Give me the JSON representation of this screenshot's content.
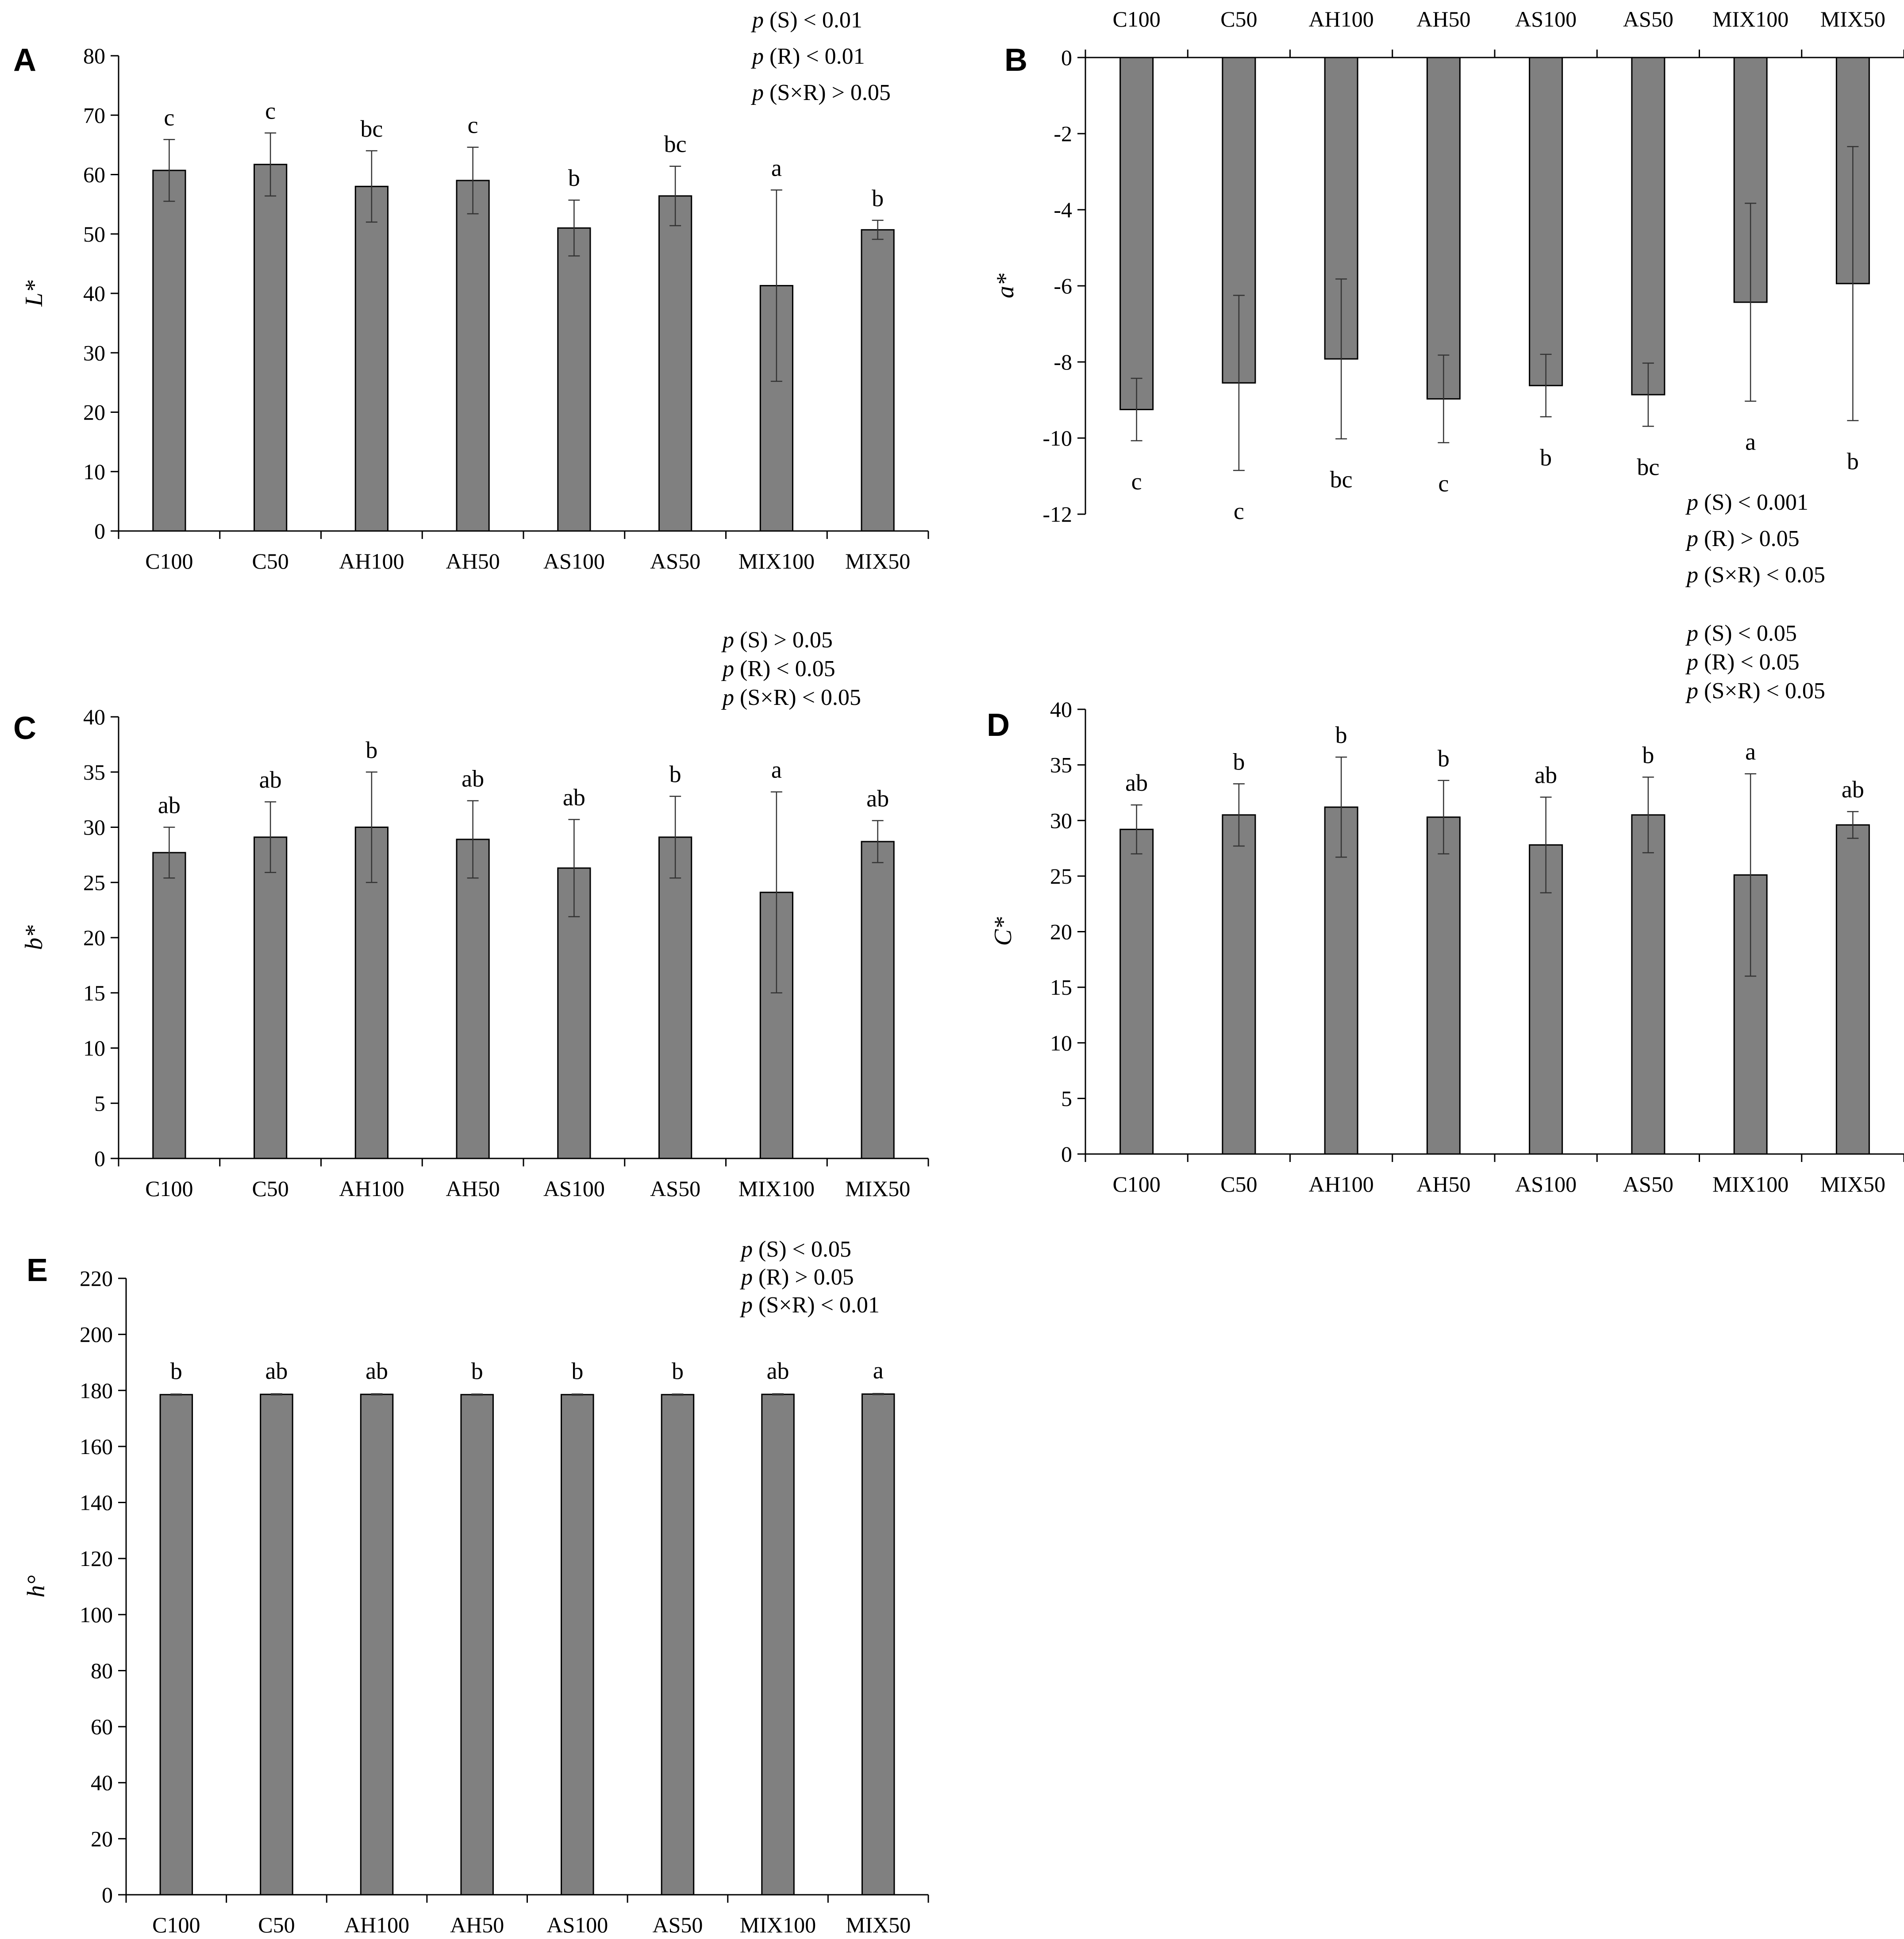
{
  "chart_data": [
    {
      "panel": "A",
      "type": "bar",
      "ylabel": "L*",
      "ylim": [
        0,
        80
      ],
      "yticks": [
        0,
        10,
        20,
        30,
        40,
        50,
        60,
        70,
        80
      ],
      "categories": [
        "C100",
        "C50",
        "AH100",
        "AH50",
        "AS100",
        "AS50",
        "MIX100",
        "MIX50"
      ],
      "values": [
        60.7,
        61.7,
        58.0,
        59.0,
        51.0,
        56.4,
        41.3,
        50.7
      ],
      "errors": [
        5.2,
        5.3,
        6.0,
        5.6,
        4.7,
        5.0,
        16.1,
        1.6
      ],
      "letters": [
        "c",
        "c",
        "bc",
        "c",
        "b",
        "bc",
        "a",
        "b"
      ],
      "stats": [
        {
          "p": "p",
          "text": " (S) < 0.01"
        },
        {
          "p": "p",
          "text": " (R) < 0.01"
        },
        {
          "p": "p",
          "text": " (S×R) > 0.05"
        }
      ]
    },
    {
      "panel": "B",
      "type": "bar",
      "ylabel": "a*",
      "ylim": [
        -12,
        0
      ],
      "yticks": [
        0,
        -2,
        -4,
        -6,
        -8,
        -10,
        -12
      ],
      "categories": [
        "C100",
        "C50",
        "AH100",
        "AH50",
        "AS100",
        "AS50",
        "MIX100",
        "MIX50"
      ],
      "values": [
        -9.25,
        -8.55,
        -7.92,
        -8.97,
        -8.62,
        -8.86,
        -6.43,
        -5.94
      ],
      "errors": [
        0.82,
        2.3,
        2.1,
        1.15,
        0.82,
        0.83,
        2.6,
        3.6
      ],
      "letters": [
        "c",
        "c",
        "bc",
        "c",
        "b",
        "bc",
        "a",
        "b"
      ],
      "stats": [
        {
          "p": "p",
          "text": " (S) < 0.001"
        },
        {
          "p": "p",
          "text": " (R) > 0.05"
        },
        {
          "p": "p",
          "text": " (S×R) < 0.05"
        }
      ]
    },
    {
      "panel": "C",
      "type": "bar",
      "ylabel": "b*",
      "ylim": [
        0,
        40
      ],
      "yticks": [
        0,
        5,
        10,
        15,
        20,
        25,
        30,
        35,
        40
      ],
      "categories": [
        "C100",
        "C50",
        "AH100",
        "AH50",
        "AS100",
        "AS50",
        "MIX100",
        "MIX50"
      ],
      "values": [
        27.7,
        29.1,
        30.0,
        28.9,
        26.3,
        29.1,
        24.1,
        28.7
      ],
      "errors": [
        2.3,
        3.2,
        5.0,
        3.5,
        4.4,
        3.7,
        9.1,
        1.9
      ],
      "letters": [
        "ab",
        "ab",
        "b",
        "ab",
        "ab",
        "b",
        "a",
        "ab"
      ],
      "stats": [
        {
          "p": "p",
          "text": " (S) > 0.05"
        },
        {
          "p": "p",
          "text": " (R) < 0.05"
        },
        {
          "p": "p",
          "text": " (S×R) < 0.05"
        }
      ]
    },
    {
      "panel": "D",
      "type": "bar",
      "ylabel": "C*",
      "ylim": [
        0,
        40
      ],
      "yticks": [
        0,
        5,
        10,
        15,
        20,
        25,
        30,
        35,
        40
      ],
      "categories": [
        "C100",
        "C50",
        "AH100",
        "AH50",
        "AS100",
        "AS50",
        "MIX100",
        "MIX50"
      ],
      "values": [
        29.2,
        30.5,
        31.2,
        30.3,
        27.8,
        30.5,
        25.1,
        29.6
      ],
      "errors": [
        2.2,
        2.8,
        4.5,
        3.3,
        4.3,
        3.4,
        9.1,
        1.2
      ],
      "letters": [
        "ab",
        "b",
        "b",
        "b",
        "ab",
        "b",
        "a",
        "ab"
      ],
      "stats": [
        {
          "p": "p",
          "text": " (S) < 0.05"
        },
        {
          "p": "p",
          "text": " (R) < 0.05"
        },
        {
          "p": "p",
          "text": " (S×R) < 0.05"
        }
      ]
    },
    {
      "panel": "E",
      "type": "bar",
      "ylabel": "h°",
      "ylim": [
        0,
        220
      ],
      "yticks": [
        0,
        20,
        40,
        60,
        80,
        100,
        120,
        140,
        160,
        180,
        200,
        220
      ],
      "categories": [
        "C100",
        "C50",
        "AH100",
        "AH50",
        "AS100",
        "AS50",
        "MIX100",
        "MIX50"
      ],
      "values": [
        178.5,
        178.6,
        178.6,
        178.5,
        178.5,
        178.5,
        178.6,
        178.7
      ],
      "errors": [
        0.2,
        0.2,
        0.2,
        0.2,
        0.2,
        0.2,
        0.2,
        0.2
      ],
      "letters": [
        "b",
        "ab",
        "ab",
        "b",
        "b",
        "b",
        "ab",
        "a"
      ],
      "stats": [
        {
          "p": "p",
          "text": " (S) < 0.05"
        },
        {
          "p": "p",
          "text": " (R) > 0.05"
        },
        {
          "p": "p",
          "text": " (S×R) < 0.01"
        }
      ]
    }
  ]
}
